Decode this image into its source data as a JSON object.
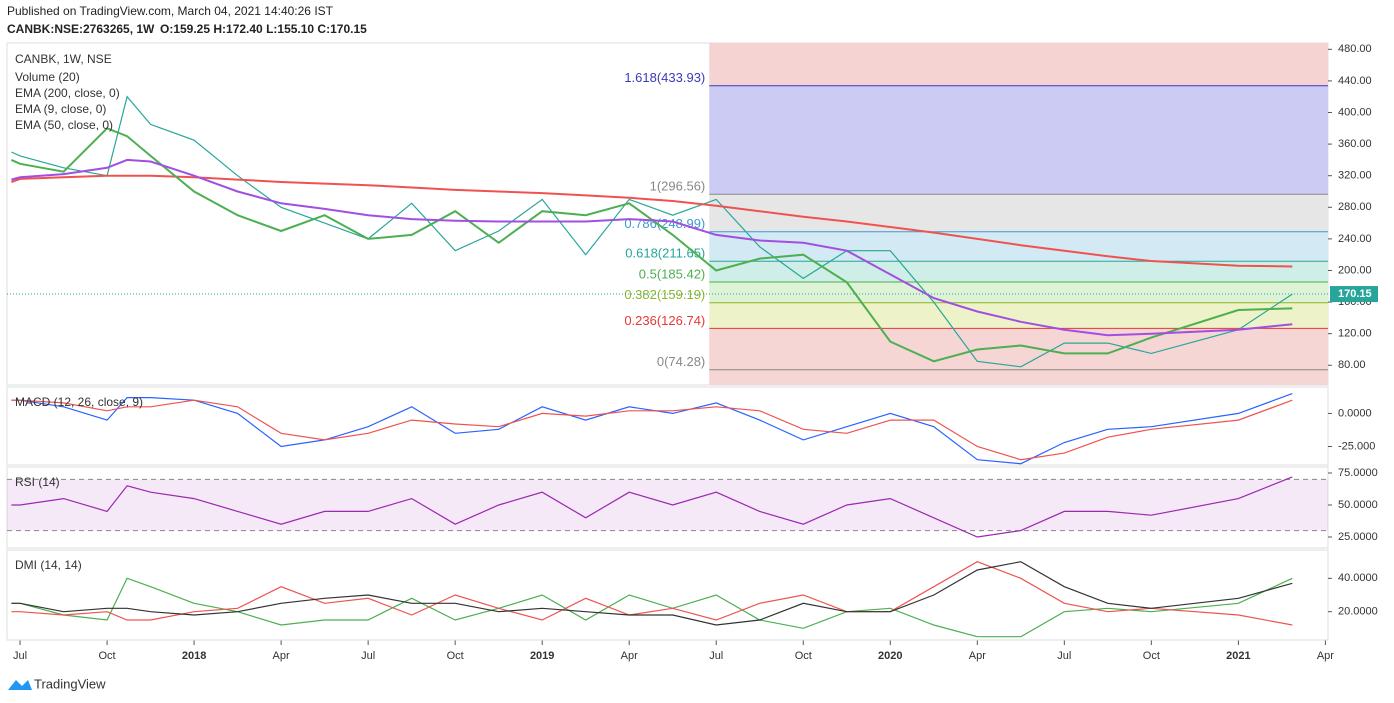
{
  "header": {
    "published": "Published on TradingView.com, March 04, 2021 14:40:26 IST",
    "symbol": "CANBK:NSE:2763265, 1W",
    "ohlc": "O:159.25 H:172.40 L:155.10 C:170.15"
  },
  "footer": {
    "brand": "TradingView"
  },
  "indicators": [
    "Volume (20)"
  ],
  "chart_data": [
    {
      "type": "line",
      "x": [
        -0.1,
        0,
        0.5,
        1,
        1.23,
        1.5,
        2,
        2.5,
        3,
        3.5,
        4,
        4.5,
        5,
        5.5,
        6,
        6.5,
        7,
        7.5,
        8,
        8.5,
        9,
        9.5,
        10,
        10.5,
        11,
        11.5,
        12,
        12.5,
        13,
        14,
        14.62
      ],
      "xlim": [
        -0.15,
        15.03
      ],
      "xticks": [
        {
          "value": 0,
          "label": "Jul"
        },
        {
          "value": 1,
          "label": "Oct"
        },
        {
          "value": 2,
          "label": "2018"
        },
        {
          "value": 3,
          "label": "Apr"
        },
        {
          "value": 4,
          "label": "Jul"
        },
        {
          "value": 5,
          "label": "Oct"
        },
        {
          "value": 6,
          "label": "2019"
        },
        {
          "value": 7,
          "label": "Apr"
        },
        {
          "value": 8,
          "label": "Jul"
        },
        {
          "value": 9,
          "label": "Oct"
        },
        {
          "value": 10,
          "label": "2020"
        },
        {
          "value": 11,
          "label": "Apr"
        },
        {
          "value": 12,
          "label": "Jul"
        },
        {
          "value": 13,
          "label": "Oct"
        },
        {
          "value": 14,
          "label": "2021"
        },
        {
          "value": 15,
          "label": "Apr"
        }
      ],
      "ylim": [
        55,
        488
      ],
      "yticks": [
        {
          "value": 80,
          "label": "80.00"
        },
        {
          "value": 120,
          "label": "120.00"
        },
        {
          "value": 160,
          "label": "160.00"
        },
        {
          "value": 200,
          "label": "200.00"
        },
        {
          "value": 240,
          "label": "240.00"
        },
        {
          "value": 280,
          "label": "280.00"
        },
        {
          "value": 320,
          "label": "320.00"
        },
        {
          "value": 360,
          "label": "360.00"
        },
        {
          "value": 400,
          "label": "400.00"
        },
        {
          "value": 440,
          "label": "440.00"
        },
        {
          "value": 480,
          "label": "480.00"
        }
      ],
      "series": [
        {
          "name": "CANBK, 1W, NSE",
          "color": "#26a69a",
          "values": [
            350,
            345,
            330,
            320,
            420,
            385,
            365,
            320,
            280,
            260,
            240,
            285,
            225,
            250,
            290,
            220,
            290,
            270,
            290,
            230,
            190,
            225,
            225,
            160,
            85,
            78,
            108,
            108,
            95,
            125,
            170.15
          ]
        },
        {
          "name": "EMA (200, close, 0)",
          "color": "#ef5350",
          "values": [
            312,
            316,
            318,
            320,
            320,
            320,
            318,
            315,
            312,
            310,
            308,
            305,
            302,
            300,
            298,
            295,
            292,
            288,
            282,
            275,
            268,
            262,
            255,
            248,
            240,
            232,
            225,
            218,
            212,
            206,
            205
          ]
        },
        {
          "name": "EMA (9, close, 0)",
          "color": "#4caf50",
          "values": [
            340,
            335,
            325,
            380,
            370,
            345,
            300,
            270,
            250,
            270,
            240,
            245,
            275,
            235,
            275,
            270,
            285,
            245,
            200,
            215,
            220,
            185,
            110,
            85,
            100,
            105,
            95,
            95,
            115,
            150,
            152
          ]
        },
        {
          "name": "EMA (50, close, 0)",
          "color": "#a04fe0",
          "values": [
            315,
            318,
            322,
            330,
            340,
            338,
            320,
            300,
            285,
            278,
            270,
            265,
            263,
            262,
            262,
            262,
            265,
            262,
            245,
            238,
            235,
            225,
            195,
            165,
            148,
            135,
            125,
            118,
            120,
            125,
            132
          ]
        }
      ],
      "fib_start": 7.92,
      "fib_levels": [
        {
          "value": 433.93,
          "label": "1.618(433.93)",
          "color": "#3a3ab8",
          "fill": "#f4d3d2"
        },
        {
          "value": 296.56,
          "label": "1(296.56)",
          "color": "#888888",
          "fill": "#cbcbf4"
        },
        {
          "value": 248.99,
          "label": "0.786(248.99)",
          "color": "#3d9ad1",
          "fill": "#e6e6e6"
        },
        {
          "value": 211.65,
          "label": "0.618(211.65)",
          "color": "#26a69a",
          "fill": "#d3e9f4"
        },
        {
          "value": 185.42,
          "label": "0.5(185.42)",
          "color": "#4caf50",
          "fill": "#cfeee7"
        },
        {
          "value": 159.19,
          "label": "0.382(159.19)",
          "color": "#8fb52a",
          "fill": "#def2d6"
        },
        {
          "value": 126.74,
          "label": "0.236(126.74)",
          "color": "#e53935",
          "fill": "#eef2c9"
        },
        {
          "value": 74.28,
          "label": "0(74.28)",
          "color": "#888888",
          "fill": "#f6d5d5"
        }
      ]
    },
    {
      "type": "line",
      "title": "MACD (12, 26, close, 9)",
      "ylim": [
        -39,
        20
      ],
      "yticks": [
        {
          "value": 0,
          "label": "0.0000"
        },
        {
          "value": -25,
          "label": "-25.000"
        }
      ],
      "series": [
        {
          "color": "#2962ff",
          "values": [
            10,
            10,
            5,
            -5,
            12,
            12,
            10,
            0,
            -25,
            -20,
            -10,
            5,
            -15,
            -12,
            5,
            -5,
            5,
            0,
            8,
            -5,
            -20,
            -10,
            0,
            -10,
            -35,
            -38,
            -22,
            -12,
            -10,
            0,
            15
          ]
        },
        {
          "color": "#ef5350",
          "values": [
            10,
            10,
            8,
            2,
            5,
            5,
            10,
            5,
            -15,
            -20,
            -15,
            -5,
            -8,
            -10,
            0,
            -2,
            2,
            2,
            5,
            2,
            -12,
            -15,
            -5,
            -5,
            -25,
            -35,
            -30,
            -18,
            -12,
            -5,
            10
          ]
        }
      ]
    },
    {
      "type": "line",
      "title": "RSI (14)",
      "ylim": [
        16.4,
        79.7
      ],
      "yticks": [
        {
          "value": 75,
          "label": "75.0000"
        },
        {
          "value": 50,
          "label": "50.0000"
        },
        {
          "value": 25,
          "label": "25.0000"
        }
      ],
      "bands": [
        30,
        70
      ],
      "series": [
        {
          "color": "#9c27b0",
          "values": [
            50,
            50,
            55,
            45,
            65,
            60,
            55,
            45,
            35,
            45,
            45,
            55,
            35,
            50,
            60,
            40,
            60,
            50,
            60,
            45,
            35,
            50,
            55,
            40,
            25,
            30,
            45,
            45,
            42,
            55,
            72
          ]
        }
      ]
    },
    {
      "type": "line",
      "title": "DMI (14, 14)",
      "ylim": [
        3,
        57
      ],
      "yticks": [
        {
          "value": 40,
          "label": "40.0000"
        },
        {
          "value": 20,
          "label": "20.0000"
        }
      ],
      "series": [
        {
          "color": "#4caf50",
          "values": [
            25,
            25,
            18,
            15,
            40,
            35,
            25,
            20,
            12,
            15,
            15,
            28,
            15,
            22,
            30,
            15,
            30,
            22,
            30,
            15,
            10,
            20,
            22,
            12,
            5,
            5,
            20,
            22,
            20,
            25,
            40
          ]
        },
        {
          "color": "#ef5350",
          "values": [
            20,
            20,
            18,
            20,
            15,
            15,
            20,
            22,
            35,
            25,
            28,
            18,
            30,
            22,
            15,
            28,
            18,
            22,
            15,
            25,
            30,
            20,
            20,
            35,
            50,
            40,
            25,
            20,
            22,
            18,
            12
          ]
        },
        {
          "color": "#333333",
          "values": [
            25,
            25,
            20,
            22,
            22,
            20,
            18,
            20,
            25,
            28,
            30,
            25,
            25,
            20,
            22,
            20,
            18,
            18,
            12,
            15,
            25,
            20,
            20,
            30,
            45,
            50,
            35,
            25,
            22,
            28,
            37
          ]
        }
      ]
    }
  ]
}
